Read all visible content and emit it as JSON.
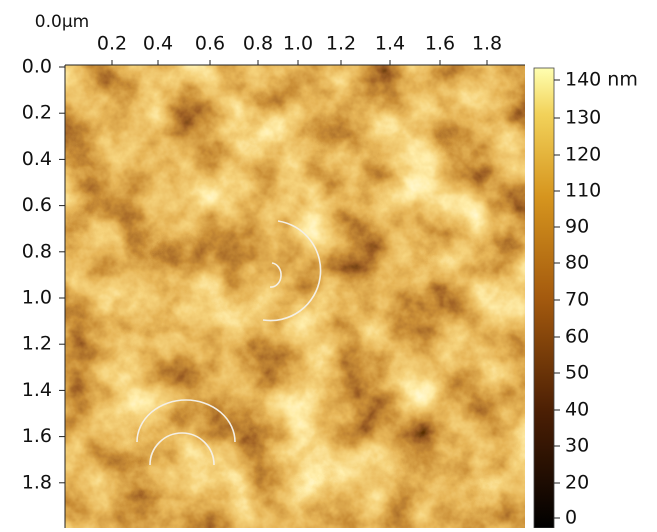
{
  "top_axis": {
    "labels": [
      "0.0μm",
      "0.2",
      "0.4",
      "0.6",
      "0.8",
      "1.0",
      "1.2",
      "1.4",
      "1.6",
      "1.8"
    ]
  },
  "left_axis": {
    "labels": [
      "0.0",
      "0.2",
      "0.4",
      "0.6",
      "0.8",
      "1.0",
      "1.2",
      "1.4",
      "1.6",
      "1.8"
    ]
  },
  "colorbar": {
    "labels": [
      "140 nm",
      "130",
      "120",
      "110",
      "90",
      "80",
      "70",
      "60",
      "50",
      "40",
      "30",
      "20",
      "0"
    ]
  }
}
